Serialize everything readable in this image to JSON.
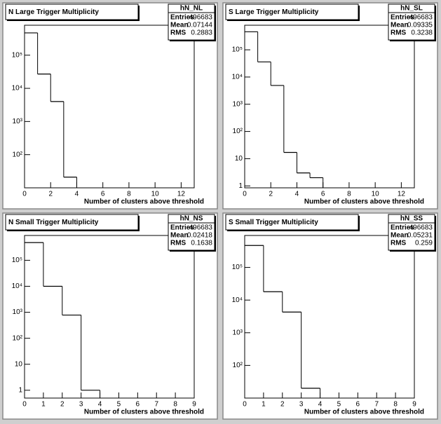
{
  "chart_data": [
    {
      "type": "histogram",
      "title": "N Large Trigger Multiplicity",
      "stats": {
        "name": "hN_NL",
        "rows": [
          {
            "label": "Entries",
            "value": 496683
          },
          {
            "label": "Mean",
            "value": 0.07144
          },
          {
            "label": "RMS",
            "value": 0.2883
          }
        ]
      },
      "x_label": "Number of clusters above threshold",
      "color": "#000000",
      "log_y": true,
      "bins": [
        0,
        1,
        2,
        3,
        4
      ],
      "values": [
        470000,
        27000,
        4000,
        21
      ],
      "xlim": [
        0,
        13
      ],
      "xticks": [
        0,
        2,
        4,
        6,
        8,
        10,
        12
      ],
      "ylim": [
        10,
        800000
      ],
      "yticks": [
        {
          "value": 100,
          "label": "10²"
        },
        {
          "value": 1000,
          "label": "10³"
        },
        {
          "value": 10000,
          "label": "10⁴"
        },
        {
          "value": 100000,
          "label": "10⁵"
        }
      ]
    },
    {
      "type": "histogram",
      "title": "S Large Trigger Multiplicity",
      "stats": {
        "name": "hN_SL",
        "rows": [
          {
            "label": "Entries",
            "value": 496683
          },
          {
            "label": "Mean",
            "value": 0.09335
          },
          {
            "label": "RMS",
            "value": 0.3238
          }
        ]
      },
      "x_label": "Number of clusters above threshold",
      "color": "#000000",
      "log_y": true,
      "bins": [
        0,
        1,
        2,
        3,
        4,
        5,
        6
      ],
      "values": [
        460000,
        36000,
        4900,
        17,
        3,
        2
      ],
      "xlim": [
        0,
        13
      ],
      "xticks": [
        0,
        2,
        4,
        6,
        8,
        10,
        12
      ],
      "ylim": [
        0.85,
        800000
      ],
      "yticks": [
        1,
        10,
        {
          "value": 100,
          "label": "10²"
        },
        {
          "value": 1000,
          "label": "10³"
        },
        {
          "value": 10000,
          "label": "10⁴"
        },
        {
          "value": 100000,
          "label": "10⁵"
        }
      ]
    },
    {
      "type": "histogram",
      "title": "N Small Trigger Multiplicity",
      "stats": {
        "name": "hN_NS",
        "rows": [
          {
            "label": "Entries",
            "value": 496683
          },
          {
            "label": "Mean",
            "value": 0.02418
          },
          {
            "label": "RMS",
            "value": 0.1638
          }
        ]
      },
      "x_label": "Number of clusters above threshold",
      "color": "#000000",
      "log_y": true,
      "bins": [
        0,
        1,
        2,
        3,
        4
      ],
      "values": [
        480000,
        10000,
        780,
        1
      ],
      "xlim": [
        0,
        9
      ],
      "xticks": [
        0,
        1,
        2,
        3,
        4,
        5,
        6,
        7,
        8,
        9
      ],
      "ylim": [
        0.5,
        900000
      ],
      "yticks": [
        1,
        10,
        {
          "value": 100,
          "label": "10²"
        },
        {
          "value": 1000,
          "label": "10³"
        },
        {
          "value": 10000,
          "label": "10⁴"
        },
        {
          "value": 100000,
          "label": "10⁵"
        }
      ]
    },
    {
      "type": "histogram",
      "title": "S Small Trigger Multiplicity",
      "stats": {
        "name": "hN_SS",
        "rows": [
          {
            "label": "Entries",
            "value": 496683
          },
          {
            "label": "Mean",
            "value": 0.05231
          },
          {
            "label": "RMS",
            "value": 0.259
          }
        ]
      },
      "x_label": "Number of clusters above threshold",
      "color": "#000000",
      "log_y": true,
      "bins": [
        0,
        1,
        2,
        3,
        4
      ],
      "values": [
        470000,
        18000,
        4300,
        20
      ],
      "xlim": [
        0,
        9
      ],
      "xticks": [
        0,
        1,
        2,
        3,
        4,
        5,
        6,
        7,
        8,
        9
      ],
      "ylim": [
        10,
        950000
      ],
      "yticks": [
        {
          "value": 100,
          "label": "10²"
        },
        {
          "value": 1000,
          "label": "10³"
        },
        {
          "value": 10000,
          "label": "10⁴"
        },
        {
          "value": 100000,
          "label": "10⁵"
        }
      ]
    }
  ]
}
